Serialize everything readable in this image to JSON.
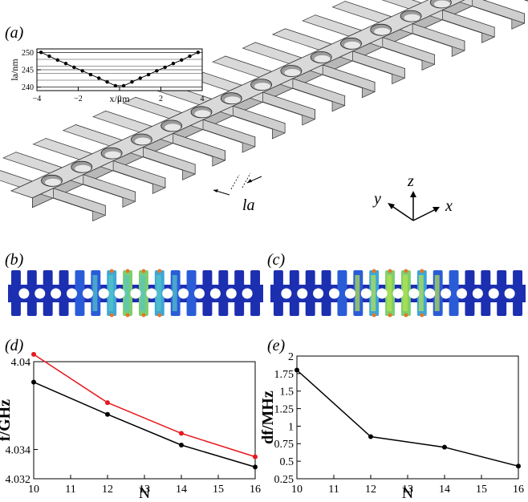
{
  "panels": {
    "a": "(a)",
    "b": "(b)",
    "c": "(c)",
    "d": "(d)",
    "e": "(e)"
  },
  "beam": {
    "la_label": "la",
    "axes": {
      "x": "x",
      "y": "y",
      "z": "z"
    }
  },
  "colors": {
    "beam_face": "#d9d9d9",
    "beam_side": "#b8b8b8",
    "mode_base": "#1c2fb0",
    "series_black": "#000000",
    "series_red": "#e8191d"
  },
  "chart_data": [
    {
      "id": "inset",
      "type": "line",
      "xlabel": "x/μm",
      "ylabel": "la/nm",
      "xlim": [
        -4,
        4
      ],
      "ylim": [
        239,
        251
      ],
      "xticks": [
        -4,
        -2,
        0,
        2,
        4
      ],
      "xtick_labels": [
        "−4",
        "−2",
        "0",
        "2",
        "4"
      ],
      "yticks": [
        240,
        245,
        250
      ],
      "grid": true,
      "series": [
        {
          "x": [
            -3.8,
            -3.4,
            -3.0,
            -2.6,
            -2.2,
            -1.8,
            -1.4,
            -1.0,
            -0.6,
            -0.2,
            0.2,
            0.6,
            1.0,
            1.4,
            1.8,
            2.2,
            2.6,
            3.0,
            3.4,
            3.8
          ],
          "y": [
            250,
            248.9,
            247.8,
            246.8,
            245.7,
            244.7,
            243.6,
            242.6,
            241.5,
            240.4,
            240.4,
            241.5,
            242.6,
            243.6,
            244.7,
            245.7,
            246.8,
            247.8,
            248.9,
            250
          ]
        }
      ]
    },
    {
      "id": "d",
      "type": "line",
      "xlabel": "N",
      "ylabel": "f/GHz",
      "xlim": [
        10,
        16
      ],
      "ylim": [
        4.032,
        4.04
      ],
      "xticks": [
        10,
        11,
        12,
        13,
        14,
        15,
        16
      ],
      "yticks": [
        4.032,
        4.034,
        4.04
      ],
      "grid": false,
      "series": [
        {
          "color": "#e8191d",
          "x": [
            10,
            12,
            14,
            16
          ],
          "y": [
            4.0405,
            4.0372,
            4.0351,
            4.0335
          ]
        },
        {
          "color": "#000000",
          "x": [
            10,
            12,
            14,
            16
          ],
          "y": [
            4.0386,
            4.0364,
            4.0343,
            4.0328
          ]
        }
      ]
    },
    {
      "id": "e",
      "type": "line",
      "xlabel": "N",
      "ylabel": "df/MHz",
      "xlim": [
        10,
        16
      ],
      "ylim": [
        0.25,
        2
      ],
      "xticks": [
        10,
        11,
        12,
        13,
        14,
        15,
        16
      ],
      "yticks": [
        0.25,
        0.5,
        0.75,
        1,
        1.25,
        1.5,
        1.75,
        2
      ],
      "ytick_labels": [
        "0.25",
        "0.5",
        "0.75",
        "1",
        "1.25",
        "1.5",
        "1.75",
        "2"
      ],
      "grid": false,
      "series": [
        {
          "color": "#000000",
          "x": [
            10,
            12,
            14,
            16
          ],
          "y": [
            1.8,
            0.85,
            0.7,
            0.43
          ]
        }
      ]
    }
  ]
}
